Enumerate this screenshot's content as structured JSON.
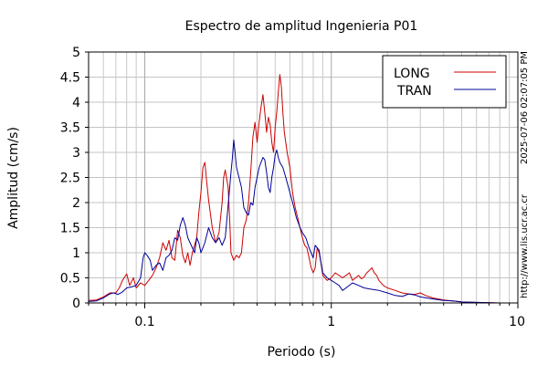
{
  "chart_data": {
    "type": "line",
    "title": "Espectro de amplitud Ingenieria P01",
    "xlabel": "Periodo (s)",
    "ylabel": "Amplitud (cm/s)",
    "x_scale": "log",
    "xlim": [
      0.05,
      10
    ],
    "ylim": [
      0,
      5
    ],
    "grid": true,
    "legend_position": "top-right",
    "x_tick_labels": [
      "0.1",
      "1",
      "10"
    ],
    "y_tick_labels": [
      "0",
      "0.5",
      "1",
      "1.5",
      "2",
      "2.5",
      "3",
      "3.5",
      "4",
      "4.5",
      "5"
    ],
    "side_text_top": "2025-07-06 02:07:05 PM",
    "side_text_bottom": "http://www.lis.ucr.ac.cr",
    "series": [
      {
        "name": "LONG",
        "color": "#cc0000",
        "points": [
          [
            0.05,
            0.05
          ],
          [
            0.055,
            0.06
          ],
          [
            0.06,
            0.12
          ],
          [
            0.065,
            0.2
          ],
          [
            0.07,
            0.2
          ],
          [
            0.073,
            0.3
          ],
          [
            0.076,
            0.45
          ],
          [
            0.08,
            0.58
          ],
          [
            0.083,
            0.35
          ],
          [
            0.087,
            0.5
          ],
          [
            0.09,
            0.3
          ],
          [
            0.095,
            0.4
          ],
          [
            0.1,
            0.35
          ],
          [
            0.105,
            0.45
          ],
          [
            0.11,
            0.55
          ],
          [
            0.115,
            0.7
          ],
          [
            0.12,
            0.9
          ],
          [
            0.125,
            1.2
          ],
          [
            0.13,
            1.05
          ],
          [
            0.135,
            1.25
          ],
          [
            0.14,
            0.9
          ],
          [
            0.145,
            0.85
          ],
          [
            0.15,
            1.45
          ],
          [
            0.155,
            1.3
          ],
          [
            0.16,
            0.95
          ],
          [
            0.165,
            0.8
          ],
          [
            0.17,
            1.0
          ],
          [
            0.175,
            0.75
          ],
          [
            0.18,
            1.0
          ],
          [
            0.19,
            1.3
          ],
          [
            0.195,
            1.8
          ],
          [
            0.2,
            2.2
          ],
          [
            0.205,
            2.7
          ],
          [
            0.21,
            2.8
          ],
          [
            0.215,
            2.4
          ],
          [
            0.22,
            2.05
          ],
          [
            0.23,
            1.5
          ],
          [
            0.24,
            1.2
          ],
          [
            0.25,
            1.4
          ],
          [
            0.26,
            2.0
          ],
          [
            0.265,
            2.5
          ],
          [
            0.27,
            2.65
          ],
          [
            0.28,
            2.3
          ],
          [
            0.285,
            1.7
          ],
          [
            0.29,
            1.0
          ],
          [
            0.3,
            0.85
          ],
          [
            0.31,
            0.95
          ],
          [
            0.32,
            0.9
          ],
          [
            0.33,
            1.0
          ],
          [
            0.34,
            1.5
          ],
          [
            0.35,
            1.65
          ],
          [
            0.36,
            2.0
          ],
          [
            0.37,
            2.6
          ],
          [
            0.38,
            3.3
          ],
          [
            0.39,
            3.6
          ],
          [
            0.4,
            3.2
          ],
          [
            0.41,
            3.6
          ],
          [
            0.42,
            3.9
          ],
          [
            0.43,
            4.15
          ],
          [
            0.44,
            3.8
          ],
          [
            0.45,
            3.4
          ],
          [
            0.46,
            3.7
          ],
          [
            0.47,
            3.55
          ],
          [
            0.48,
            3.2
          ],
          [
            0.49,
            3.0
          ],
          [
            0.5,
            3.5
          ],
          [
            0.51,
            3.8
          ],
          [
            0.52,
            4.2
          ],
          [
            0.53,
            4.55
          ],
          [
            0.54,
            4.3
          ],
          [
            0.55,
            3.8
          ],
          [
            0.56,
            3.4
          ],
          [
            0.58,
            3.0
          ],
          [
            0.6,
            2.7
          ],
          [
            0.62,
            2.2
          ],
          [
            0.64,
            1.9
          ],
          [
            0.66,
            1.7
          ],
          [
            0.68,
            1.5
          ],
          [
            0.7,
            1.3
          ],
          [
            0.72,
            1.15
          ],
          [
            0.74,
            1.1
          ],
          [
            0.76,
            0.9
          ],
          [
            0.78,
            0.7
          ],
          [
            0.8,
            0.6
          ],
          [
            0.82,
            0.7
          ],
          [
            0.84,
            1.1
          ],
          [
            0.86,
            1.0
          ],
          [
            0.88,
            0.8
          ],
          [
            0.9,
            0.55
          ],
          [
            0.95,
            0.45
          ],
          [
            1.0,
            0.5
          ],
          [
            1.05,
            0.6
          ],
          [
            1.1,
            0.55
          ],
          [
            1.15,
            0.5
          ],
          [
            1.2,
            0.55
          ],
          [
            1.25,
            0.6
          ],
          [
            1.3,
            0.45
          ],
          [
            1.35,
            0.5
          ],
          [
            1.4,
            0.55
          ],
          [
            1.45,
            0.48
          ],
          [
            1.5,
            0.52
          ],
          [
            1.55,
            0.6
          ],
          [
            1.6,
            0.65
          ],
          [
            1.65,
            0.7
          ],
          [
            1.7,
            0.6
          ],
          [
            1.75,
            0.55
          ],
          [
            1.8,
            0.45
          ],
          [
            1.9,
            0.35
          ],
          [
            2.0,
            0.3
          ],
          [
            2.2,
            0.25
          ],
          [
            2.4,
            0.2
          ],
          [
            2.6,
            0.18
          ],
          [
            2.8,
            0.17
          ],
          [
            3.0,
            0.2
          ],
          [
            3.2,
            0.15
          ],
          [
            3.5,
            0.1
          ],
          [
            4.0,
            0.06
          ],
          [
            5.0,
            0.02
          ],
          [
            6.0,
            0.01
          ],
          [
            8.0,
            0.0
          ],
          [
            10.0,
            0.0
          ]
        ]
      },
      {
        "name": "TRAN",
        "color": "#000099",
        "points": [
          [
            0.05,
            0.03
          ],
          [
            0.055,
            0.04
          ],
          [
            0.06,
            0.1
          ],
          [
            0.065,
            0.18
          ],
          [
            0.068,
            0.2
          ],
          [
            0.072,
            0.17
          ],
          [
            0.076,
            0.22
          ],
          [
            0.08,
            0.3
          ],
          [
            0.085,
            0.32
          ],
          [
            0.09,
            0.35
          ],
          [
            0.095,
            0.5
          ],
          [
            0.098,
            0.9
          ],
          [
            0.1,
            1.0
          ],
          [
            0.103,
            0.95
          ],
          [
            0.107,
            0.85
          ],
          [
            0.11,
            0.65
          ],
          [
            0.115,
            0.75
          ],
          [
            0.12,
            0.8
          ],
          [
            0.125,
            0.65
          ],
          [
            0.13,
            0.9
          ],
          [
            0.135,
            0.95
          ],
          [
            0.14,
            1.05
          ],
          [
            0.145,
            1.3
          ],
          [
            0.15,
            1.25
          ],
          [
            0.155,
            1.55
          ],
          [
            0.16,
            1.7
          ],
          [
            0.165,
            1.55
          ],
          [
            0.17,
            1.3
          ],
          [
            0.175,
            1.2
          ],
          [
            0.18,
            1.1
          ],
          [
            0.185,
            1.0
          ],
          [
            0.19,
            1.3
          ],
          [
            0.195,
            1.2
          ],
          [
            0.2,
            1.0
          ],
          [
            0.21,
            1.2
          ],
          [
            0.22,
            1.5
          ],
          [
            0.23,
            1.3
          ],
          [
            0.24,
            1.2
          ],
          [
            0.25,
            1.3
          ],
          [
            0.26,
            1.15
          ],
          [
            0.27,
            1.3
          ],
          [
            0.28,
            1.95
          ],
          [
            0.29,
            2.6
          ],
          [
            0.295,
            2.9
          ],
          [
            0.3,
            3.25
          ],
          [
            0.305,
            3.0
          ],
          [
            0.31,
            2.7
          ],
          [
            0.32,
            2.5
          ],
          [
            0.33,
            2.3
          ],
          [
            0.34,
            1.9
          ],
          [
            0.35,
            1.8
          ],
          [
            0.36,
            1.75
          ],
          [
            0.37,
            2.0
          ],
          [
            0.38,
            1.95
          ],
          [
            0.39,
            2.3
          ],
          [
            0.4,
            2.5
          ],
          [
            0.41,
            2.7
          ],
          [
            0.42,
            2.8
          ],
          [
            0.43,
            2.9
          ],
          [
            0.44,
            2.85
          ],
          [
            0.45,
            2.6
          ],
          [
            0.46,
            2.3
          ],
          [
            0.47,
            2.2
          ],
          [
            0.48,
            2.5
          ],
          [
            0.49,
            2.7
          ],
          [
            0.5,
            2.95
          ],
          [
            0.51,
            3.05
          ],
          [
            0.52,
            2.9
          ],
          [
            0.53,
            2.8
          ],
          [
            0.55,
            2.7
          ],
          [
            0.57,
            2.5
          ],
          [
            0.59,
            2.3
          ],
          [
            0.61,
            2.1
          ],
          [
            0.63,
            1.9
          ],
          [
            0.65,
            1.7
          ],
          [
            0.68,
            1.5
          ],
          [
            0.7,
            1.4
          ],
          [
            0.73,
            1.3
          ],
          [
            0.76,
            1.1
          ],
          [
            0.8,
            0.9
          ],
          [
            0.82,
            1.15
          ],
          [
            0.84,
            1.1
          ],
          [
            0.86,
            1.05
          ],
          [
            0.88,
            0.8
          ],
          [
            0.9,
            0.6
          ],
          [
            0.95,
            0.5
          ],
          [
            1.0,
            0.45
          ],
          [
            1.05,
            0.4
          ],
          [
            1.1,
            0.35
          ],
          [
            1.15,
            0.25
          ],
          [
            1.2,
            0.3
          ],
          [
            1.3,
            0.4
          ],
          [
            1.4,
            0.35
          ],
          [
            1.5,
            0.3
          ],
          [
            1.6,
            0.28
          ],
          [
            1.8,
            0.25
          ],
          [
            2.0,
            0.2
          ],
          [
            2.2,
            0.15
          ],
          [
            2.4,
            0.13
          ],
          [
            2.6,
            0.18
          ],
          [
            2.8,
            0.16
          ],
          [
            3.0,
            0.12
          ],
          [
            3.5,
            0.08
          ],
          [
            4.0,
            0.05
          ],
          [
            4.5,
            0.04
          ],
          [
            5.0,
            0.02
          ],
          [
            6.0,
            0.01
          ],
          [
            8.0,
            0.0
          ],
          [
            10.0,
            0.0
          ]
        ]
      }
    ]
  }
}
